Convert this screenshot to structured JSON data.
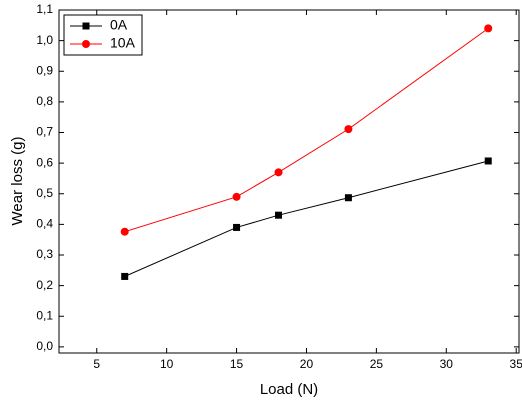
{
  "chart_data": {
    "type": "line",
    "x_label": "Load (N)",
    "y_label": "Wear loss (g)",
    "x": [
      7,
      15,
      18,
      23,
      33
    ],
    "series": [
      {
        "name": "0A",
        "color": "#000000",
        "marker": "square",
        "values": [
          0.23,
          0.39,
          0.43,
          0.487,
          0.607
        ]
      },
      {
        "name": "10A",
        "color": "#ff0000",
        "marker": "circle",
        "values": [
          0.376,
          0.49,
          0.57,
          0.711,
          1.04
        ]
      }
    ],
    "xlim": [
      2.3,
      35.2
    ],
    "xticks": [
      5,
      10,
      15,
      20,
      25,
      30,
      35
    ],
    "ylim": [
      -0.02,
      1.1
    ],
    "yticks": [
      {
        "value": 0,
        "label": "0,0"
      },
      {
        "value": 0.1,
        "label": "0,1"
      },
      {
        "value": 0.2,
        "label": "0,2"
      },
      {
        "value": 0.3,
        "label": "0,3"
      },
      {
        "value": 0.4,
        "label": "0,4"
      },
      {
        "value": 0.5,
        "label": "0,5"
      },
      {
        "value": 0.6,
        "label": "0,6"
      },
      {
        "value": 0.7,
        "label": "0,7"
      },
      {
        "value": 0.8,
        "label": "0,8"
      },
      {
        "value": 0.9,
        "label": "0,9"
      },
      {
        "value": 1.0,
        "label": "1,0"
      },
      {
        "value": 1.1,
        "label": "1,1"
      }
    ],
    "legend_position": "upper left"
  }
}
